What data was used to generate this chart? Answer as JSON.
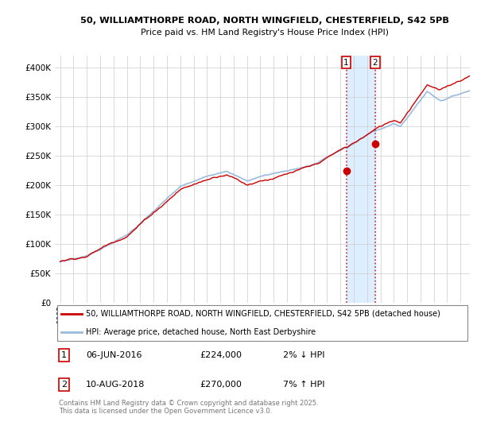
{
  "title_line1": "50, WILLIAMTHORPE ROAD, NORTH WINGFIELD, CHESTERFIELD, S42 5PB",
  "title_line2": "Price paid vs. HM Land Registry's House Price Index (HPI)",
  "background_color": "#ffffff",
  "plot_bg_color": "#ffffff",
  "grid_color": "#cccccc",
  "hpi_color": "#99bbdd",
  "property_color": "#cc0000",
  "legend_label_property": "50, WILLIAMTHORPE ROAD, NORTH WINGFIELD, CHESTERFIELD, S42 5PB (detached house)",
  "legend_label_hpi": "HPI: Average price, detached house, North East Derbyshire",
  "sale1_date": "06-JUN-2016",
  "sale1_price": 224000,
  "sale1_note": "2% ↓ HPI",
  "sale2_date": "10-AUG-2018",
  "sale2_price": 270000,
  "sale2_note": "7% ↑ HPI",
  "copyright_text": "Contains HM Land Registry data © Crown copyright and database right 2025.\nThis data is licensed under the Open Government Licence v3.0.",
  "ylim_min": 0,
  "ylim_max": 420000,
  "yticks": [
    0,
    50000,
    100000,
    150000,
    200000,
    250000,
    300000,
    350000,
    400000
  ],
  "ytick_labels": [
    "£0",
    "£50K",
    "£100K",
    "£150K",
    "£200K",
    "£250K",
    "£300K",
    "£350K",
    "£400K"
  ],
  "sale1_year": 2016.44,
  "sale2_year": 2018.61,
  "span_color": "#ddeeff",
  "dot_color": "#cc0000",
  "vline_color": "#cc0000"
}
